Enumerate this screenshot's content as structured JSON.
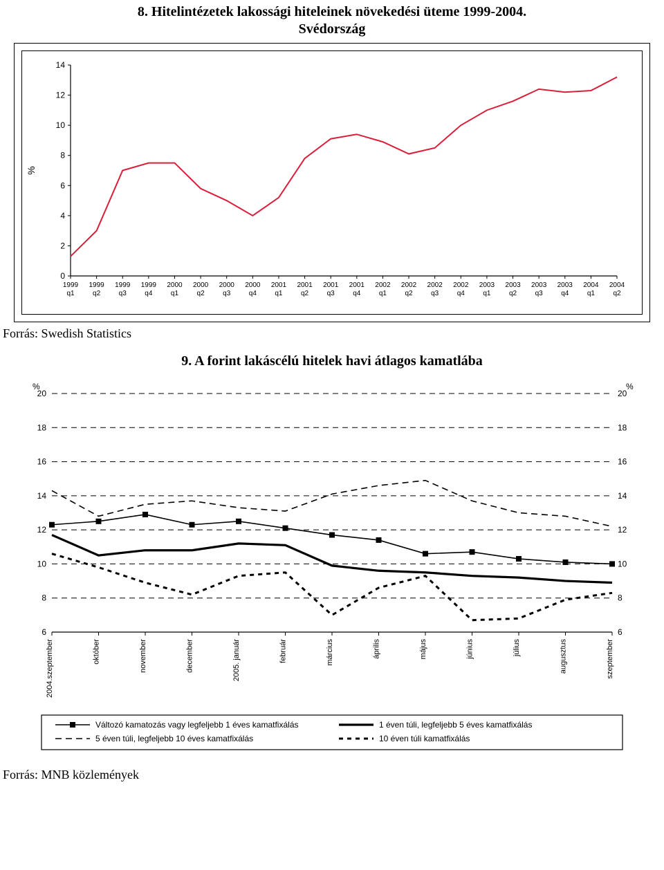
{
  "chart1": {
    "title_line1": "8. Hitelintézetek lakossági hiteleinek növekedési üteme 1999-2004.",
    "title_line2": "Svédország",
    "type": "line",
    "line_color": "#d91e3a",
    "line_width": 2,
    "background_color": "#ffffff",
    "axis_color": "#000000",
    "ylabel": "%",
    "ylabel_fontsize": 14,
    "tick_fontsize": 11,
    "ylim": [
      0,
      14
    ],
    "ytick_step": 2,
    "x_categories_top": [
      "1999",
      "1999",
      "1999",
      "1999",
      "2000",
      "2000",
      "2000",
      "2000",
      "2001",
      "2001",
      "2001",
      "2001",
      "2002",
      "2002",
      "2002",
      "2002",
      "2003",
      "2003",
      "2003",
      "2003",
      "2004",
      "2004"
    ],
    "x_categories_bot": [
      "q1",
      "q2",
      "q3",
      "q4",
      "q1",
      "q2",
      "q3",
      "q4",
      "q1",
      "q2",
      "q3",
      "q4",
      "q1",
      "q2",
      "q3",
      "q4",
      "q1",
      "q2",
      "q3",
      "q4",
      "q1",
      "q2"
    ],
    "values": [
      1.3,
      3.0,
      7.0,
      7.5,
      7.5,
      5.8,
      5.0,
      4.0,
      5.2,
      7.8,
      9.1,
      9.4,
      8.9,
      8.1,
      8.5,
      10.0,
      11.0,
      11.6,
      12.4,
      12.2,
      12.3,
      13.2
    ],
    "source": "Forrás: Swedish Statistics"
  },
  "chart2": {
    "title": "9. A forint lakáscélú hitelek havi átlagos kamatlába",
    "type": "line",
    "background_color": "#ffffff",
    "axis_color": "#000000",
    "grid_style": "dashed",
    "grid_color": "#000000",
    "ylabel_left": "%",
    "ylabel_right": "%",
    "tick_fontsize": 11,
    "ylim": [
      6,
      20
    ],
    "ytick_step": 2,
    "x_labels": [
      "2004.szeptember",
      "október",
      "november",
      "december",
      "2005. január",
      "február",
      "március",
      "április",
      "május",
      "június",
      "július",
      "augusztus",
      "szeptember"
    ],
    "series": [
      {
        "name": "Változó kamatozás vagy legfeljebb 1 éves kamatfixálás",
        "values": [
          12.3,
          12.5,
          12.9,
          12.3,
          12.5,
          12.1,
          11.7,
          11.4,
          10.6,
          10.7,
          10.3,
          10.1,
          10.0
        ],
        "color": "#000000",
        "width": 1.6,
        "dash": "none",
        "marker": "square",
        "marker_size": 8
      },
      {
        "name": "1 éven túli, legfeljebb 5 éves kamatfixálás",
        "values": [
          11.7,
          10.5,
          10.8,
          10.8,
          11.2,
          11.1,
          9.9,
          9.6,
          9.5,
          9.3,
          9.2,
          9.0,
          8.9
        ],
        "color": "#000000",
        "width": 3.2,
        "dash": "none",
        "marker": "none",
        "marker_size": 0
      },
      {
        "name": "5 éven túli, legfeljebb 10 éves kamatfixálás",
        "values": [
          14.3,
          12.8,
          13.5,
          13.7,
          13.3,
          13.1,
          14.1,
          14.6,
          14.9,
          13.7,
          13.0,
          12.8,
          12.2
        ],
        "color": "#000000",
        "width": 1.6,
        "dash": "9,6",
        "marker": "none",
        "marker_size": 0
      },
      {
        "name": "10 éven túli kamatfixálás",
        "values": [
          10.6,
          9.8,
          8.9,
          8.2,
          9.3,
          9.5,
          7.0,
          8.6,
          9.3,
          6.7,
          6.8,
          7.9,
          8.3
        ],
        "color": "#000000",
        "width": 3.0,
        "dash": "6,6",
        "marker": "none",
        "marker_size": 0
      }
    ],
    "legend_position": "bottom",
    "source": "Forrás: MNB közlemények"
  }
}
